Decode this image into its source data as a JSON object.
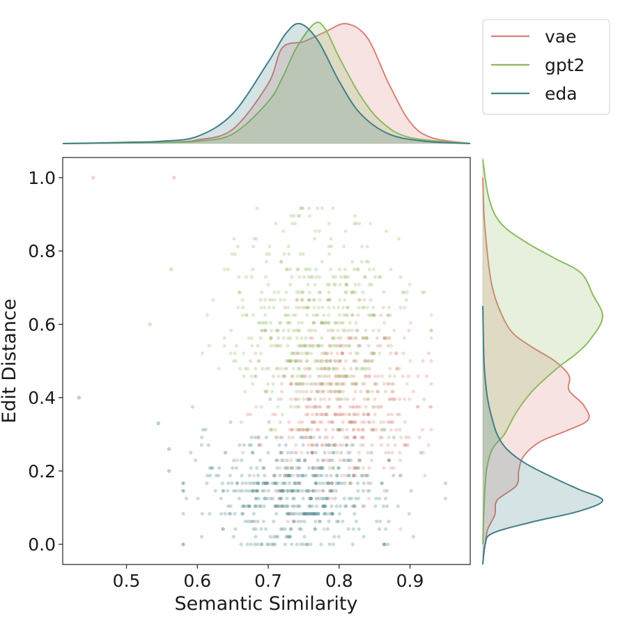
{
  "chart_data": {
    "type": "scatter",
    "subtype": "jointplot",
    "title": "",
    "xlabel": "Semantic Similarity",
    "ylabel": "Edit Distance",
    "xlim": [
      0.41,
      0.985
    ],
    "ylim": [
      -0.055,
      1.055
    ],
    "xticks": [
      "0.5",
      "0.6",
      "0.7",
      "0.8",
      "0.9"
    ],
    "yticks": [
      "0.0",
      "0.2",
      "0.4",
      "0.6",
      "0.8",
      "1.0"
    ],
    "legend_position": "top-right",
    "series": [
      {
        "name": "vae",
        "color": "#d98077",
        "marginal_x": {
          "peak": 0.81,
          "curve": [
            [
              0.41,
              0
            ],
            [
              0.55,
              0.01
            ],
            [
              0.6,
              0.03
            ],
            [
              0.65,
              0.12
            ],
            [
              0.7,
              0.5
            ],
            [
              0.72,
              0.8
            ],
            [
              0.75,
              0.85
            ],
            [
              0.78,
              0.93
            ],
            [
              0.81,
              1.0
            ],
            [
              0.84,
              0.88
            ],
            [
              0.87,
              0.5
            ],
            [
              0.9,
              0.18
            ],
            [
              0.93,
              0.05
            ],
            [
              0.985,
              0
            ]
          ]
        },
        "marginal_y": {
          "peak": 0.34,
          "curve": [
            [
              -0.05,
              0
            ],
            [
              0.0,
              0.02
            ],
            [
              0.04,
              0.04
            ],
            [
              0.08,
              0.1
            ],
            [
              0.12,
              0.12
            ],
            [
              0.16,
              0.28
            ],
            [
              0.2,
              0.3
            ],
            [
              0.24,
              0.34
            ],
            [
              0.28,
              0.48
            ],
            [
              0.31,
              0.7
            ],
            [
              0.34,
              0.88
            ],
            [
              0.38,
              0.84
            ],
            [
              0.42,
              0.72
            ],
            [
              0.46,
              0.72
            ],
            [
              0.5,
              0.6
            ],
            [
              0.54,
              0.4
            ],
            [
              0.58,
              0.24
            ],
            [
              0.64,
              0.14
            ],
            [
              0.7,
              0.08
            ],
            [
              0.76,
              0.05
            ],
            [
              0.82,
              0.03
            ],
            [
              0.9,
              0.01
            ],
            [
              1.0,
              0
            ]
          ]
        },
        "points": {
          "x_range": [
            0.64,
            0.93
          ],
          "y_range": [
            0.05,
            0.66
          ],
          "x_center": 0.8,
          "y_center": 0.38,
          "outliers": [
            [
              0.453,
              1.0
            ],
            [
              0.567,
              1.0
            ]
          ]
        }
      },
      {
        "name": "gpt2",
        "color": "#8cbb5e",
        "marginal_x": {
          "peak": 0.77,
          "curve": [
            [
              0.41,
              0
            ],
            [
              0.55,
              0.01
            ],
            [
              0.6,
              0.02
            ],
            [
              0.65,
              0.08
            ],
            [
              0.7,
              0.35
            ],
            [
              0.72,
              0.55
            ],
            [
              0.74,
              0.8
            ],
            [
              0.765,
              1.0
            ],
            [
              0.78,
              0.96
            ],
            [
              0.8,
              0.72
            ],
            [
              0.83,
              0.4
            ],
            [
              0.86,
              0.18
            ],
            [
              0.9,
              0.05
            ],
            [
              0.985,
              0
            ]
          ]
        },
        "marginal_y": {
          "peak": 0.62,
          "curve": [
            [
              0.0,
              0
            ],
            [
              0.1,
              0.01
            ],
            [
              0.2,
              0.03
            ],
            [
              0.26,
              0.08
            ],
            [
              0.3,
              0.18
            ],
            [
              0.36,
              0.28
            ],
            [
              0.42,
              0.42
            ],
            [
              0.48,
              0.62
            ],
            [
              0.52,
              0.78
            ],
            [
              0.56,
              0.9
            ],
            [
              0.62,
              1.0
            ],
            [
              0.68,
              0.92
            ],
            [
              0.74,
              0.82
            ],
            [
              0.78,
              0.6
            ],
            [
              0.82,
              0.38
            ],
            [
              0.86,
              0.2
            ],
            [
              0.9,
              0.1
            ],
            [
              0.96,
              0.04
            ],
            [
              1.05,
              0
            ]
          ]
        },
        "points": {
          "x_range": [
            0.6,
            0.93
          ],
          "y_range": [
            0.2,
            0.92
          ],
          "x_center": 0.77,
          "y_center": 0.6,
          "outliers": [
            [
              0.533,
              0.6
            ],
            [
              0.563,
              0.75
            ]
          ]
        }
      },
      {
        "name": "eda",
        "color": "#3f7f86",
        "marginal_x": {
          "peak": 0.745,
          "curve": [
            [
              0.41,
              0
            ],
            [
              0.5,
              0.01
            ],
            [
              0.55,
              0.02
            ],
            [
              0.6,
              0.06
            ],
            [
              0.65,
              0.25
            ],
            [
              0.7,
              0.68
            ],
            [
              0.725,
              0.92
            ],
            [
              0.745,
              1.0
            ],
            [
              0.77,
              0.86
            ],
            [
              0.8,
              0.52
            ],
            [
              0.83,
              0.25
            ],
            [
              0.87,
              0.08
            ],
            [
              0.92,
              0.02
            ],
            [
              0.985,
              0
            ]
          ]
        },
        "marginal_y": {
          "peak": 0.12,
          "curve": [
            [
              -0.055,
              0
            ],
            [
              0.0,
              0.02
            ],
            [
              0.03,
              0.08
            ],
            [
              0.06,
              0.4
            ],
            [
              0.09,
              0.8
            ],
            [
              0.12,
              1.0
            ],
            [
              0.15,
              0.8
            ],
            [
              0.18,
              0.6
            ],
            [
              0.22,
              0.36
            ],
            [
              0.26,
              0.2
            ],
            [
              0.3,
              0.12
            ],
            [
              0.34,
              0.08
            ],
            [
              0.38,
              0.05
            ],
            [
              0.42,
              0.03
            ],
            [
              0.5,
              0.01
            ],
            [
              0.65,
              0
            ]
          ]
        },
        "points": {
          "x_range": [
            0.58,
            0.95
          ],
          "y_range": [
            0.0,
            0.4
          ],
          "x_center": 0.74,
          "y_center": 0.14,
          "outliers": [
            [
              0.433,
              0.4
            ],
            [
              0.545,
              0.33
            ],
            [
              0.56,
              0.26
            ],
            [
              0.56,
              0.2
            ]
          ]
        }
      }
    ]
  }
}
